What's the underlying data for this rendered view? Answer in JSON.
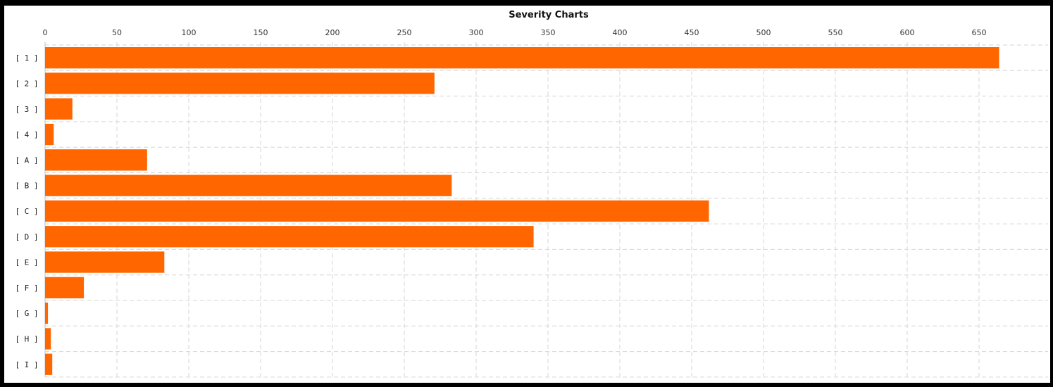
{
  "chart_data": {
    "type": "bar",
    "orientation": "horizontal",
    "title": "Severity Charts",
    "xlabel": "",
    "ylabel": "",
    "xlim": [
      0,
      700
    ],
    "x_ticks": [
      0,
      50,
      100,
      150,
      200,
      250,
      300,
      350,
      400,
      450,
      500,
      550,
      600,
      650
    ],
    "x_axis_position": "top",
    "grid": true,
    "categories": [
      "[ 1 ]",
      "[ 2 ]",
      "[ 3 ]",
      "[ 4 ]",
      "[ A ]",
      "[ B ]",
      "[ C ]",
      "[ D ]",
      "[ E ]",
      "[ F ]",
      "[ G ]",
      "[ H ]",
      "[ I ]"
    ],
    "values": [
      664,
      271,
      19,
      6,
      71,
      283,
      462,
      340,
      83,
      27,
      2,
      4,
      5
    ],
    "bar_color": "#ff6600"
  }
}
